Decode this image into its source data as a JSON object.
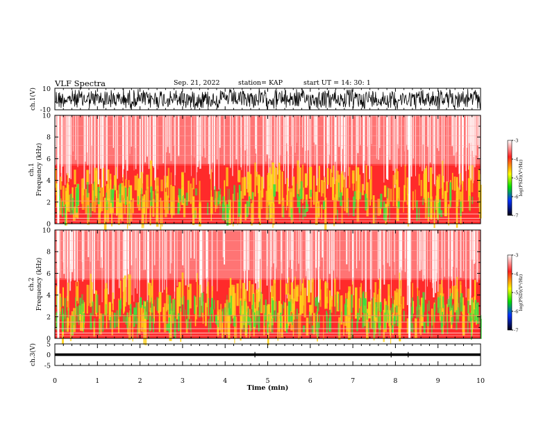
{
  "header": {
    "title": "VLF Spectra",
    "date": "Sep. 21, 2022",
    "station": "station= KAP",
    "start_ut": "start  UT =   14: 30: 1"
  },
  "chart_data": [
    {
      "type": "line",
      "panel": "ch.1 waveform",
      "ylabel": "ch.1(V)",
      "yticks": [
        "10",
        "-10"
      ],
      "ylim": [
        -10,
        10
      ],
      "xlim": [
        0,
        10
      ],
      "description_series": [
        {
          "values_range": [
            -10,
            10
          ]
        }
      ]
    },
    {
      "type": "heatmap",
      "panel": "ch.1 spectrogram",
      "ylabel": "ch.1\nFrequency  (kHz)",
      "ylabel_line1": "ch.1",
      "ylabel_line2": "Frequency  (kHz)",
      "yticks": [
        "0",
        "2",
        "4",
        "6",
        "8",
        "10"
      ],
      "ylim": [
        0,
        10
      ],
      "xlim": [
        0,
        10
      ],
      "colorbar": {
        "label": "log(PSD)(V²/Hz)",
        "ticks": [
          "-3",
          "-4",
          "-5",
          "-6",
          "-7"
        ],
        "range": [
          -7,
          -3
        ],
        "colors": [
          "#ffffff",
          "#ff0000",
          "#ffff00",
          "#00ff00",
          "#0000ff",
          "#000000"
        ]
      }
    },
    {
      "type": "heatmap",
      "panel": "ch.2 spectrogram",
      "ylabel_line1": "ch.2",
      "ylabel_line2": "Frequency  (kHz)",
      "yticks": [
        "0",
        "2",
        "4",
        "6",
        "8",
        "10"
      ],
      "ylim": [
        0,
        10
      ],
      "xlim": [
        0,
        10
      ],
      "colorbar": {
        "label": "log(PSD)(V²/Hz)",
        "ticks": [
          "-3",
          "-4",
          "-5",
          "-6",
          "-7"
        ],
        "range": [
          -7,
          -3
        ]
      }
    },
    {
      "type": "line",
      "panel": "ch.3 waveform",
      "ylabel": "ch.3(V)",
      "yticks": [
        "5",
        "0",
        "-5"
      ],
      "ylim": [
        -5,
        5
      ],
      "xlim": [
        0,
        10
      ],
      "xticks": [
        "0",
        "1",
        "2",
        "3",
        "4",
        "5",
        "6",
        "7",
        "8",
        "9",
        "10"
      ],
      "xlabel": "Time  (min)"
    }
  ]
}
